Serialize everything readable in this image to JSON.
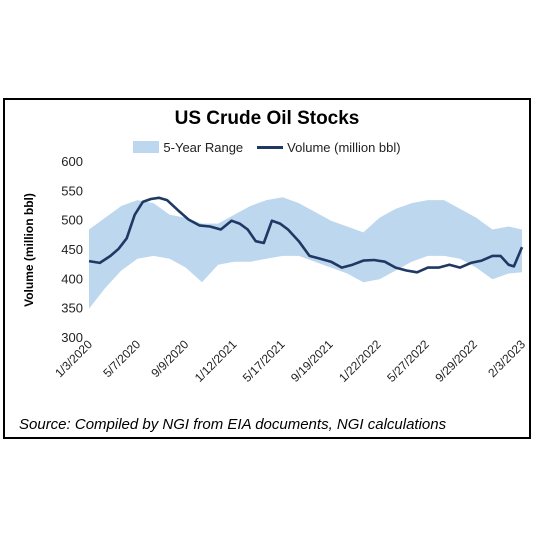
{
  "chart_data": {
    "type": "area",
    "title": "US Crude Oil Stocks",
    "ylabel": "Volume (million bbl)",
    "xlabel": "",
    "ylim": [
      300,
      600
    ],
    "yticks": [
      300,
      350,
      400,
      450,
      500,
      550,
      600
    ],
    "xlim": [
      "2020-01-03",
      "2023-02-03"
    ],
    "xtick_labels": [
      "1/3/2020",
      "5/7/2020",
      "9/9/2020",
      "1/12/2021",
      "5/17/2021",
      "9/19/2021",
      "1/22/2022",
      "5/27/2022",
      "9/29/2022",
      "2/3/2023"
    ],
    "grid": false,
    "legend_position": "top",
    "colors": {
      "range": "#bdd7ee",
      "volume": "#1f3864"
    },
    "series": [
      {
        "name": "5-Year Range",
        "kind": "band",
        "x": [
          "2020-01-03",
          "2020-02-14",
          "2020-03-27",
          "2020-05-08",
          "2020-06-19",
          "2020-07-31",
          "2020-09-11",
          "2020-10-23",
          "2020-12-04",
          "2021-01-15",
          "2021-02-26",
          "2021-04-09",
          "2021-05-21",
          "2021-07-02",
          "2021-08-13",
          "2021-09-24",
          "2021-11-05",
          "2021-12-17",
          "2022-01-28",
          "2022-03-11",
          "2022-04-22",
          "2022-06-03",
          "2022-07-15",
          "2022-08-26",
          "2022-10-07",
          "2022-11-18",
          "2022-12-30",
          "2023-02-03"
        ],
        "low": [
          350,
          385,
          415,
          435,
          440,
          435,
          420,
          395,
          425,
          430,
          430,
          435,
          440,
          440,
          430,
          420,
          410,
          395,
          400,
          415,
          430,
          440,
          440,
          435,
          420,
          400,
          410,
          412
        ],
        "high": [
          485,
          505,
          525,
          535,
          530,
          510,
          505,
          495,
          495,
          510,
          525,
          535,
          540,
          530,
          515,
          500,
          490,
          480,
          505,
          520,
          530,
          535,
          535,
          520,
          505,
          485,
          490,
          485
        ]
      },
      {
        "name": "Volume (million bbl)",
        "kind": "line",
        "x": [
          "2020-01-03",
          "2020-01-31",
          "2020-02-28",
          "2020-03-20",
          "2020-04-10",
          "2020-05-01",
          "2020-05-22",
          "2020-06-12",
          "2020-07-03",
          "2020-07-24",
          "2020-08-21",
          "2020-09-18",
          "2020-10-16",
          "2020-11-13",
          "2020-12-11",
          "2021-01-08",
          "2021-01-29",
          "2021-02-19",
          "2021-03-12",
          "2021-04-02",
          "2021-04-23",
          "2021-05-14",
          "2021-06-04",
          "2021-07-02",
          "2021-07-30",
          "2021-08-27",
          "2021-09-24",
          "2021-10-22",
          "2021-11-19",
          "2021-12-17",
          "2022-01-14",
          "2022-02-11",
          "2022-03-11",
          "2022-04-08",
          "2022-05-06",
          "2022-06-03",
          "2022-07-01",
          "2022-07-29",
          "2022-08-26",
          "2022-09-23",
          "2022-10-21",
          "2022-11-18",
          "2022-12-09",
          "2022-12-30",
          "2023-01-13",
          "2023-02-03"
        ],
        "y": [
          431,
          428,
          440,
          452,
          470,
          510,
          532,
          537,
          539,
          535,
          518,
          502,
          492,
          490,
          485,
          500,
          495,
          485,
          465,
          462,
          500,
          495,
          485,
          465,
          440,
          435,
          430,
          420,
          425,
          432,
          433,
          430,
          420,
          415,
          412,
          420,
          420,
          425,
          420,
          428,
          432,
          440,
          440,
          425,
          422,
          455
        ]
      }
    ]
  },
  "source_note": "Source: Compiled by NGI from EIA documents, NGI calculations"
}
